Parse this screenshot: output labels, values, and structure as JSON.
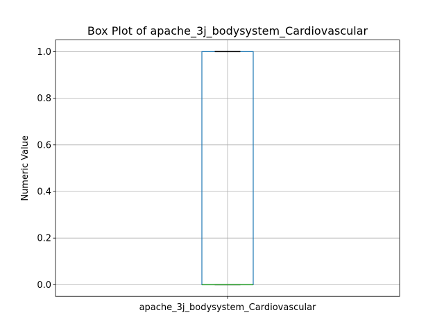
{
  "chart_data": {
    "type": "box",
    "title": "Box Plot of apache_3j_bodysystem_Cardiovascular",
    "xlabel": "",
    "ylabel": "Numeric Value",
    "categories": [
      "apache_3j_bodysystem_Cardiovascular"
    ],
    "boxes": [
      {
        "name": "apache_3j_bodysystem_Cardiovascular",
        "whisker_low": 0.0,
        "q1": 0.0,
        "median": 0.0,
        "q3": 1.0,
        "whisker_high": 1.0
      }
    ],
    "ylim": [
      -0.05,
      1.05
    ],
    "yticks": [
      0.0,
      0.2,
      0.4,
      0.6,
      0.8,
      1.0
    ],
    "ytick_labels": [
      "0.0",
      "0.2",
      "0.4",
      "0.6",
      "0.8",
      "1.0"
    ],
    "grid": true,
    "colors": {
      "box": "#1f77b4",
      "median": "#2ca02c",
      "whisker": "#000000",
      "grid": "#b0b0b0"
    }
  }
}
